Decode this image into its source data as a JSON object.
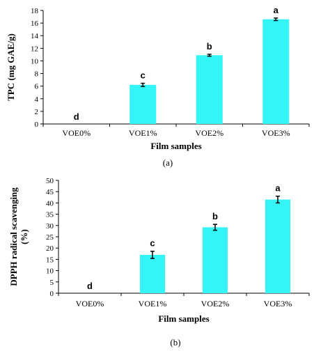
{
  "chart_data": [
    {
      "type": "bar",
      "panel_label": "(a)",
      "categories": [
        "VOE0%",
        "VOE1%",
        "VOE2%",
        "VOE3%"
      ],
      "values": [
        0,
        6.2,
        10.9,
        16.6
      ],
      "errors": [
        0,
        0.25,
        0.15,
        0.2
      ],
      "significance": [
        "d",
        "c",
        "b",
        "a"
      ],
      "xlabel": "Film samples",
      "ylabel": "TPC (mg GAE/g)",
      "ylim": [
        0,
        18
      ],
      "yticks": [
        0,
        2,
        4,
        6,
        8,
        10,
        12,
        14,
        16,
        18
      ],
      "bar_color": "#33F5F5",
      "grid": false
    },
    {
      "type": "bar",
      "panel_label": "(b)",
      "categories": [
        "VOE0%",
        "VOE1%",
        "VOE2%",
        "VOE3%"
      ],
      "values": [
        0,
        17,
        29.2,
        41.5
      ],
      "errors": [
        0,
        1.6,
        1.3,
        1.5
      ],
      "significance": [
        "d",
        "c",
        "b",
        "a"
      ],
      "xlabel": "Film samples",
      "ylabel": "DPPH radical scavenging (%)",
      "ylabel_lines": [
        "DPPH radical scavenging",
        "(%)"
      ],
      "ylim": [
        0,
        50
      ],
      "yticks": [
        0,
        5,
        10,
        15,
        20,
        25,
        30,
        35,
        40,
        45,
        50
      ],
      "bar_color": "#33F5F5",
      "grid": false
    }
  ]
}
